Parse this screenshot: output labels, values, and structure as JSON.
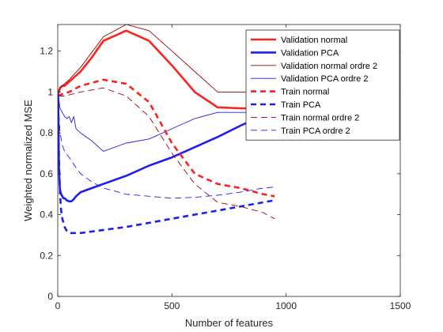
{
  "chart_data": {
    "type": "line",
    "title": "",
    "xlabel": "Number of features",
    "ylabel": "Weighted normalized MSE",
    "xlim": [
      0,
      1500
    ],
    "ylim": [
      0,
      1.33
    ],
    "xticks": [
      0,
      500,
      1000,
      1500
    ],
    "yticks": [
      0,
      0.2,
      0.4,
      0.6,
      0.8,
      1,
      1.2
    ],
    "grid": false,
    "legend_position": "top-right",
    "series": [
      {
        "name": "Validation normal",
        "color": "#ff2020",
        "style": "solid",
        "weight": "thick",
        "x": [
          1,
          5,
          10,
          20,
          30,
          40,
          50,
          60,
          70,
          80,
          100,
          150,
          200,
          300,
          400,
          500,
          600,
          700,
          800,
          900,
          950
        ],
        "y": [
          1.0,
          1.0,
          1.02,
          1.03,
          1.03,
          1.04,
          1.05,
          1.06,
          1.07,
          1.08,
          1.1,
          1.17,
          1.25,
          1.3,
          1.25,
          1.13,
          1.0,
          0.925,
          0.92,
          0.92,
          0.92
        ]
      },
      {
        "name": "Validation PCA",
        "color": "#1e1ef0",
        "style": "solid",
        "weight": "thick",
        "x": [
          1,
          3,
          5,
          8,
          10,
          15,
          20,
          25,
          30,
          40,
          50,
          60,
          70,
          80,
          100,
          150,
          200,
          300,
          400,
          500,
          600,
          700,
          800,
          900,
          950
        ],
        "y": [
          1.0,
          0.85,
          0.65,
          0.55,
          0.52,
          0.5,
          0.49,
          0.48,
          0.48,
          0.47,
          0.465,
          0.465,
          0.475,
          0.49,
          0.51,
          0.53,
          0.55,
          0.59,
          0.64,
          0.68,
          0.73,
          0.78,
          0.835,
          0.885,
          0.91
        ]
      },
      {
        "name": "Validation normal ordre 2",
        "color": "#a00000",
        "style": "solid",
        "weight": "thin",
        "x": [
          1,
          10,
          30,
          50,
          100,
          200,
          300,
          400,
          500,
          600,
          700,
          800,
          900,
          950
        ],
        "y": [
          1.0,
          1.02,
          1.04,
          1.06,
          1.12,
          1.27,
          1.33,
          1.3,
          1.2,
          1.1,
          1.0,
          1.0,
          1.0,
          1.0
        ]
      },
      {
        "name": "Validation PCA ordre 2",
        "color": "#1e1ef0",
        "style": "solid",
        "weight": "thin",
        "x": [
          1,
          10,
          20,
          30,
          40,
          50,
          60,
          70,
          80,
          100,
          150,
          200,
          300,
          400,
          500,
          600,
          700,
          800,
          900,
          950
        ],
        "y": [
          1.0,
          0.92,
          0.9,
          0.88,
          0.87,
          0.88,
          0.85,
          0.88,
          0.82,
          0.8,
          0.76,
          0.71,
          0.75,
          0.77,
          0.82,
          0.87,
          0.9,
          0.9,
          0.9,
          0.9
        ]
      },
      {
        "name": "Train normal",
        "color": "#ff2020",
        "style": "dashed",
        "weight": "thick",
        "x": [
          1,
          20,
          50,
          100,
          200,
          300,
          400,
          500,
          600,
          700,
          800,
          900,
          950
        ],
        "y": [
          0.98,
          0.99,
          1.0,
          1.03,
          1.06,
          1.04,
          0.95,
          0.75,
          0.6,
          0.55,
          0.53,
          0.5,
          0.49
        ]
      },
      {
        "name": "Train PCA",
        "color": "#1e1ef0",
        "style": "dashed",
        "weight": "thick",
        "x": [
          1,
          5,
          10,
          15,
          20,
          30,
          40,
          50,
          70,
          100,
          200,
          300,
          400,
          500,
          600,
          700,
          800,
          900,
          950
        ],
        "y": [
          0.99,
          0.7,
          0.5,
          0.42,
          0.38,
          0.34,
          0.32,
          0.31,
          0.31,
          0.31,
          0.325,
          0.34,
          0.36,
          0.38,
          0.4,
          0.42,
          0.44,
          0.46,
          0.47
        ]
      },
      {
        "name": "Train normal ordre 2",
        "color": "#a00000",
        "style": "dashed",
        "weight": "thin",
        "x": [
          1,
          30,
          100,
          200,
          300,
          400,
          500,
          600,
          700,
          800,
          900,
          950
        ],
        "y": [
          0.98,
          0.98,
          1.0,
          1.02,
          0.98,
          0.88,
          0.7,
          0.55,
          0.46,
          0.44,
          0.41,
          0.38
        ]
      },
      {
        "name": "Train PCA ordre 2",
        "color": "#1e1ef0",
        "style": "dashed",
        "weight": "thin",
        "x": [
          1,
          5,
          10,
          20,
          30,
          50,
          80,
          100,
          150,
          200,
          300,
          400,
          500,
          600,
          700,
          800,
          900,
          950
        ],
        "y": [
          0.99,
          0.9,
          0.8,
          0.74,
          0.71,
          0.68,
          0.63,
          0.6,
          0.56,
          0.53,
          0.5,
          0.49,
          0.48,
          0.485,
          0.495,
          0.51,
          0.53,
          0.535
        ]
      }
    ]
  }
}
